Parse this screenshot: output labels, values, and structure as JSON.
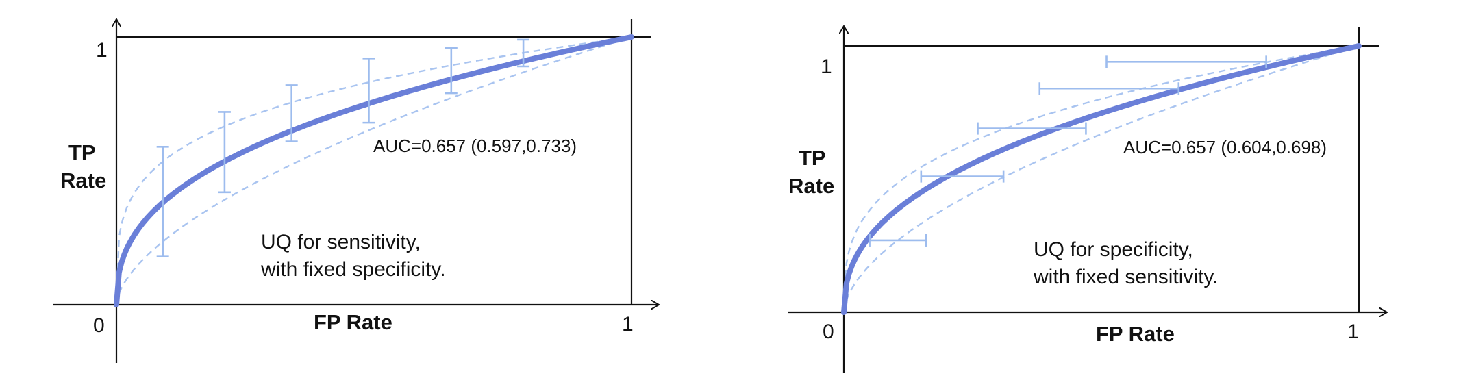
{
  "colors": {
    "main_curve": "#6a7fd8",
    "band_curve": "#9dbcee",
    "band_dashed": "#a9c4f0",
    "axis": "#111111"
  },
  "chart_data": [
    {
      "type": "line",
      "subtype": "roc_with_vertical_uncertainty",
      "xlabel": "FP Rate",
      "ylabel_line1": "TP",
      "ylabel_line2": "Rate",
      "xlim": [
        0,
        1
      ],
      "ylim": [
        0,
        1
      ],
      "x_ticks": [
        "0",
        "1"
      ],
      "y_ticks": [
        "1"
      ],
      "auc_label": "AUC=0.657 (0.597,0.733)",
      "note_line1": "UQ for sensitivity,",
      "note_line2": "with fixed specificity.",
      "roc_exponent": 0.4,
      "upper_exponent": 0.26,
      "lower_exponent": 0.6,
      "error_bars": [
        {
          "x": 0.09,
          "low": 0.18,
          "high": 0.59
        },
        {
          "x": 0.21,
          "low": 0.42,
          "high": 0.72
        },
        {
          "x": 0.34,
          "low": 0.61,
          "high": 0.82
        },
        {
          "x": 0.49,
          "low": 0.68,
          "high": 0.92
        },
        {
          "x": 0.65,
          "low": 0.79,
          "high": 0.96
        },
        {
          "x": 0.79,
          "low": 0.89,
          "high": 0.99
        }
      ]
    },
    {
      "type": "line",
      "subtype": "roc_with_horizontal_uncertainty",
      "xlabel": "FP Rate",
      "ylabel_line1": "TP",
      "ylabel_line2": "Rate",
      "xlim": [
        0,
        1
      ],
      "ylim": [
        0,
        1
      ],
      "x_ticks": [
        "0",
        "1"
      ],
      "y_ticks": [
        "1"
      ],
      "auc_label": "AUC=0.657 (0.604,0.698)",
      "note_line1": "UQ for specificity,",
      "note_line2": "with fixed sensitivity.",
      "roc_exponent": 0.42,
      "upper_exponent": 0.32,
      "lower_exponent": 0.58,
      "error_bars": [
        {
          "y": 0.27,
          "low": 0.05,
          "high": 0.16
        },
        {
          "y": 0.51,
          "low": 0.15,
          "high": 0.31
        },
        {
          "y": 0.69,
          "low": 0.26,
          "high": 0.47
        },
        {
          "y": 0.84,
          "low": 0.38,
          "high": 0.65
        },
        {
          "y": 0.94,
          "low": 0.51,
          "high": 0.82
        }
      ]
    }
  ]
}
